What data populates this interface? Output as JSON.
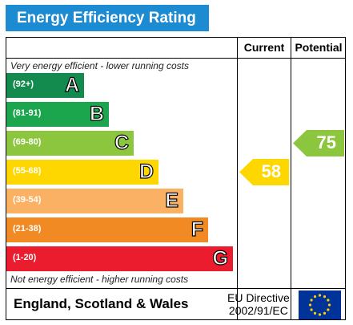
{
  "title": "Energy Efficiency Rating",
  "columns": {
    "current": "Current",
    "potential": "Potential"
  },
  "top_note": "Very energy efficient - lower running costs",
  "bottom_note": "Not energy efficient - higher running costs",
  "footer": {
    "region": "England, Scotland & Wales",
    "directive": "EU Directive",
    "directive_number": "2002/91/EC"
  },
  "chart_data": {
    "type": "bar",
    "bands": [
      {
        "range": "(92+)",
        "letter": "A",
        "color": "#138a4e"
      },
      {
        "range": "(81-91)",
        "letter": "B",
        "color": "#1ba64e"
      },
      {
        "range": "(69-80)",
        "letter": "C",
        "color": "#8cc63e"
      },
      {
        "range": "(55-68)",
        "letter": "D",
        "color": "#fed700"
      },
      {
        "range": "(39-54)",
        "letter": "E",
        "color": "#fbb163"
      },
      {
        "range": "(21-38)",
        "letter": "F",
        "color": "#f28a23"
      },
      {
        "range": "(1-20)",
        "letter": "G",
        "color": "#ea1c2d"
      }
    ],
    "current": {
      "value": "58",
      "band": "D",
      "color": "#fed700"
    },
    "potential": {
      "value": "75",
      "band": "C",
      "color": "#8cc63e"
    }
  }
}
